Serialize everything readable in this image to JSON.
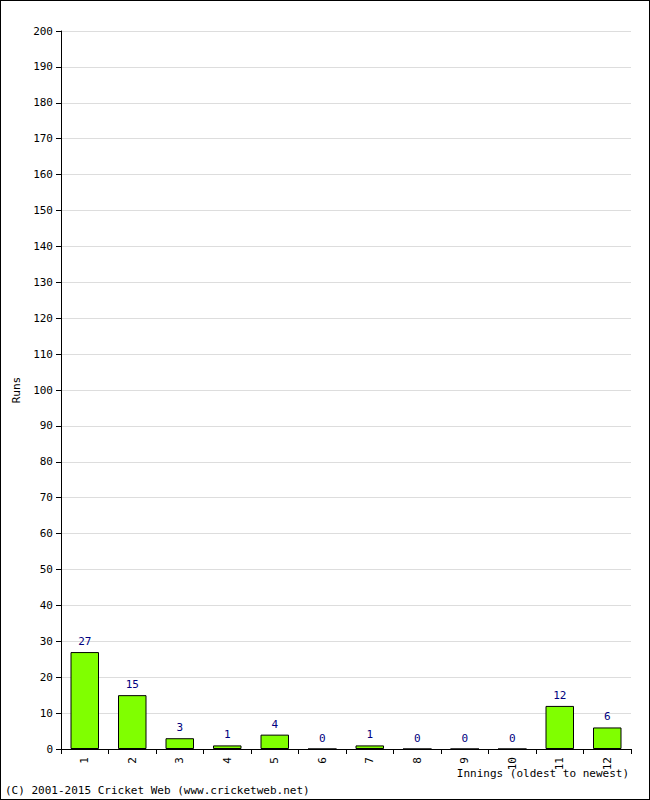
{
  "chart_data": {
    "type": "bar",
    "categories": [
      "1",
      "2",
      "3",
      "4",
      "5",
      "6",
      "7",
      "8",
      "9",
      "10",
      "11",
      "12"
    ],
    "values": [
      27,
      15,
      3,
      1,
      4,
      0,
      1,
      0,
      0,
      0,
      12,
      6
    ],
    "color": "#80ff00",
    "x_label": "Innings (oldest to newest)",
    "y_label": "Runs",
    "annotations": [
      "(C) 2001-2015 Cricket Web (www.cricketweb.net)"
    ],
    "ylim": [
      0,
      200
    ],
    "yticks": [
      0,
      10,
      20,
      30,
      40,
      50,
      60,
      70,
      80,
      90,
      100,
      110,
      120,
      130,
      140,
      150,
      160,
      170,
      180,
      190,
      200
    ],
    "grid": true,
    "data_labels": true
  }
}
